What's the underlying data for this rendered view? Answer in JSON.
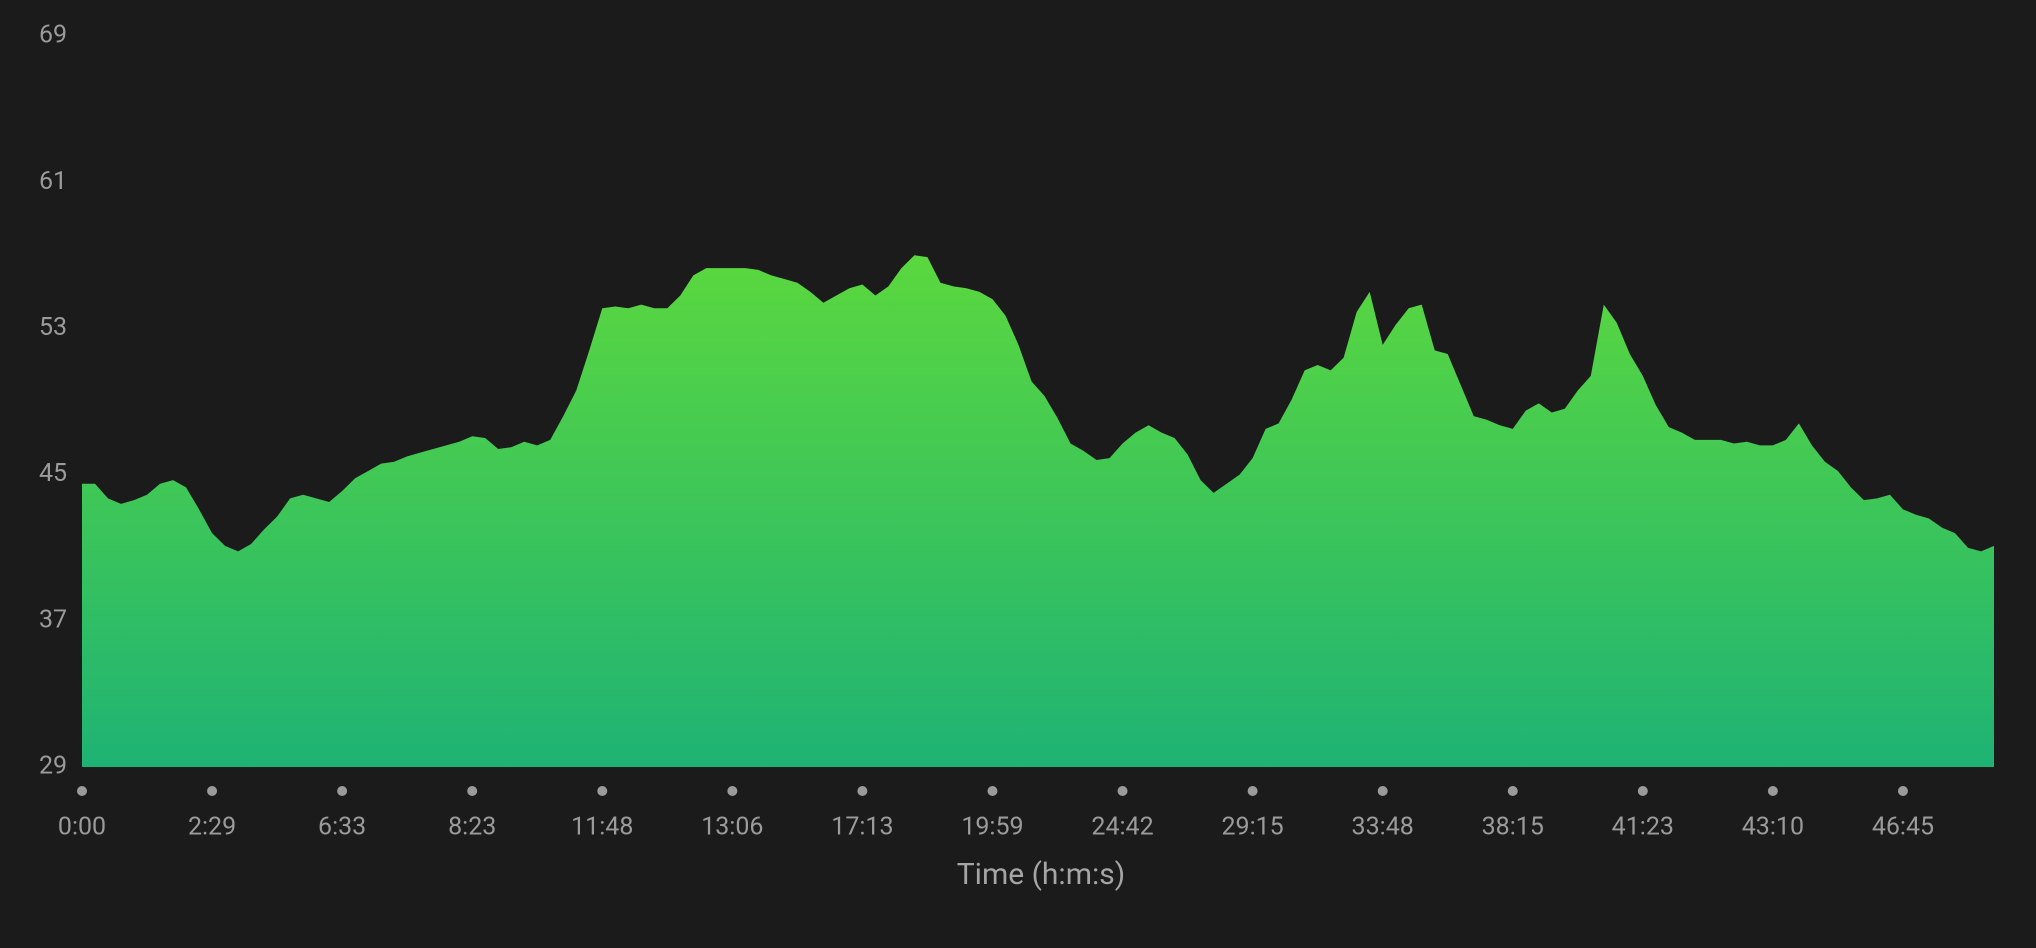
{
  "chart_data": {
    "type": "area",
    "x_label": "Time (h:m:s)",
    "categories": [
      "0:00",
      null,
      null,
      null,
      null,
      null,
      null,
      null,
      null,
      null,
      "2:29",
      null,
      null,
      null,
      null,
      null,
      null,
      null,
      null,
      null,
      "6:33",
      null,
      null,
      null,
      null,
      null,
      null,
      null,
      null,
      null,
      "8:23",
      null,
      null,
      null,
      null,
      null,
      null,
      null,
      null,
      null,
      "11:48",
      null,
      null,
      null,
      null,
      null,
      null,
      null,
      null,
      null,
      "13:06",
      null,
      null,
      null,
      null,
      null,
      null,
      null,
      null,
      null,
      "17:13",
      null,
      null,
      null,
      null,
      null,
      null,
      null,
      null,
      null,
      "19:59",
      null,
      null,
      null,
      null,
      null,
      null,
      null,
      null,
      null,
      "24:42",
      null,
      null,
      null,
      null,
      null,
      null,
      null,
      null,
      null,
      "29:15",
      null,
      null,
      null,
      null,
      null,
      null,
      null,
      null,
      null,
      "33:48",
      null,
      null,
      null,
      null,
      null,
      null,
      null,
      null,
      null,
      "38:15",
      null,
      null,
      null,
      null,
      null,
      null,
      null,
      null,
      null,
      "41:23",
      null,
      null,
      null,
      null,
      null,
      null,
      null,
      null,
      null,
      "43:10",
      null,
      null,
      null,
      null,
      null,
      null,
      null,
      null,
      null,
      "46:45",
      null,
      null,
      null,
      null,
      null,
      null,
      null
    ],
    "values": [
      44.5,
      44.5,
      43.7,
      43.4,
      43.6,
      43.9,
      44.5,
      44.7,
      44.3,
      43.1,
      41.8,
      41.1,
      40.8,
      41.2,
      42.0,
      42.7,
      43.7,
      43.9,
      43.7,
      43.5,
      44.1,
      44.8,
      45.2,
      45.6,
      45.7,
      46.0,
      46.2,
      46.4,
      46.6,
      46.8,
      47.1,
      47.0,
      46.4,
      46.5,
      46.8,
      46.6,
      46.9,
      48.2,
      49.6,
      51.8,
      54.1,
      54.2,
      54.1,
      54.3,
      54.1,
      54.1,
      54.8,
      55.9,
      56.3,
      56.3,
      56.3,
      56.3,
      56.2,
      55.9,
      55.7,
      55.5,
      55.0,
      54.4,
      54.8,
      55.2,
      55.4,
      54.8,
      55.3,
      56.3,
      57.0,
      56.9,
      55.5,
      55.3,
      55.2,
      55.0,
      54.6,
      53.7,
      52.1,
      50.1,
      49.3,
      48.1,
      46.7,
      46.3,
      45.8,
      45.9,
      46.7,
      47.3,
      47.7,
      47.3,
      47.0,
      46.1,
      44.7,
      44.0,
      44.5,
      45.0,
      45.9,
      47.5,
      47.8,
      49.1,
      50.7,
      51.0,
      50.7,
      51.4,
      53.9,
      55.0,
      52.1,
      53.2,
      54.1,
      54.3,
      51.8,
      51.6,
      49.9,
      48.2,
      48.0,
      47.7,
      47.5,
      48.5,
      48.9,
      48.4,
      48.6,
      49.6,
      50.4,
      54.3,
      53.3,
      51.6,
      50.4,
      48.8,
      47.6,
      47.3,
      46.9,
      46.9,
      46.9,
      46.7,
      46.8,
      46.6,
      46.6,
      46.9,
      47.8,
      46.6,
      45.7,
      45.2,
      44.3,
      43.6,
      43.7,
      43.9,
      43.1,
      42.8,
      42.6,
      42.1,
      41.8,
      41.0,
      40.8,
      41.1
    ],
    "fill_gradient": [
      "#5bd83e",
      "#1eb374"
    ],
    "ylim": [
      29,
      69
    ],
    "yticks": [
      29,
      37,
      45,
      53,
      61,
      69
    ],
    "grid": false
  }
}
